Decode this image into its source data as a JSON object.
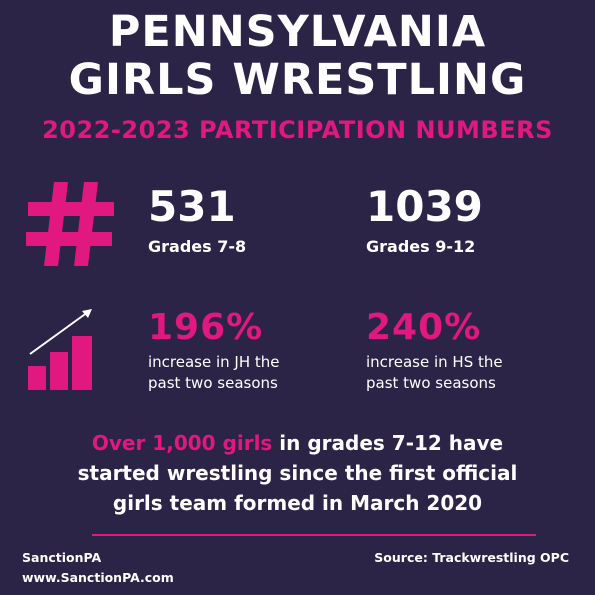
{
  "title": {
    "line1": "PENNSYLVANIA",
    "line2": "GIRLS WRESTLING"
  },
  "subtitle": "2022-2023 PARTICIPATION NUMBERS",
  "stats": [
    {
      "number": "531",
      "label": "Grades 7-8"
    },
    {
      "number": "1039",
      "label": "Grades 9-12"
    }
  ],
  "increases": [
    {
      "percent": "196%",
      "line1": "increase in JH the",
      "line2": "past two seasons"
    },
    {
      "percent": "240%",
      "line1": "increase in HS the",
      "line2": "past two seasons"
    }
  ],
  "summary": {
    "highlight": "Over 1,000 girls",
    "text1": " in grades 7-12 have",
    "text2": "started wrestling since the first official",
    "text3": "girls team formed in March 2020"
  },
  "footer": {
    "org": "SanctionPA",
    "website": "www.SanctionPA.com",
    "source": "Source: Trackwrestling OPC"
  },
  "icons": {
    "hash": "hash-icon",
    "chart": "bar-chart-growth-icon"
  },
  "colors": {
    "background": "#2c2447",
    "accent": "#e0187f",
    "text": "#ffffff"
  }
}
